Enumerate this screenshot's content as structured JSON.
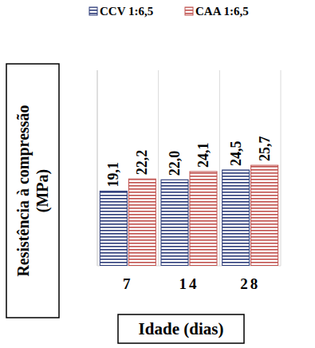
{
  "chart_data": {
    "type": "bar",
    "categories": [
      "7",
      "14",
      "28"
    ],
    "series": [
      {
        "name": "CCV 1:6,5",
        "color": "#2b3a78",
        "values": [
          19.1,
          22.0,
          24.5
        ],
        "value_labels": [
          "19,1",
          "22,0",
          "24,5"
        ]
      },
      {
        "name": "CAA 1:6,5",
        "color": "#c0504d",
        "values": [
          22.2,
          24.1,
          25.7
        ],
        "value_labels": [
          "22,2",
          "24,1",
          "25,7"
        ]
      }
    ],
    "x_label": "Idade (dias)",
    "y_label": "Resistência à compressão (MPa)",
    "ylim": [
      0,
      50
    ],
    "yticks": [],
    "data_labels": true,
    "tick_labels": "x",
    "legend": "top",
    "grid": false
  }
}
